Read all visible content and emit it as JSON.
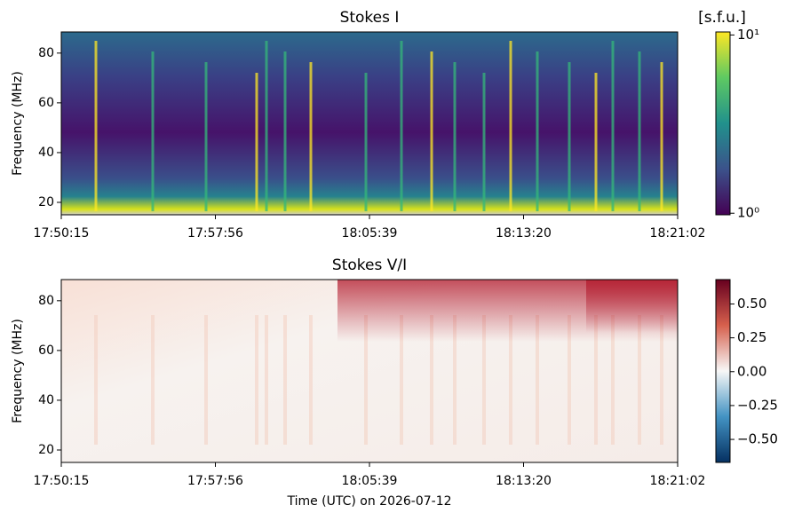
{
  "chart_data": [
    {
      "type": "heatmap",
      "title": "Stokes I",
      "ylabel": "Frequency (MHz)",
      "categories": [
        "17:50:15",
        "17:57:56",
        "18:05:39",
        "18:13:20",
        "18:21:02"
      ],
      "ylim": [
        15,
        88.5
      ],
      "yticks": [
        20,
        40,
        60,
        80
      ],
      "colorbar_label": "[s.f.u.]",
      "colorbar_log": true,
      "colorbar_lim": [
        0.98,
        10.4
      ],
      "colorbar_ticks": [
        {
          "value": 1,
          "label": "10⁰"
        },
        {
          "value": 10,
          "label": "10¹"
        }
      ],
      "colormap": [
        "#440154",
        "#3b528b",
        "#21918c",
        "#5ec962",
        "#fde725"
      ]
    },
    {
      "type": "heatmap",
      "title": "Stokes V/I",
      "ylabel": "Frequency (MHz)",
      "xlabel": "Time (UTC) on 2026-07-12",
      "categories": [
        "17:50:15",
        "17:57:56",
        "18:05:39",
        "18:13:20",
        "18:21:02"
      ],
      "ylim": [
        15,
        88.5
      ],
      "yticks": [
        20,
        40,
        60,
        80
      ],
      "colorbar_log": false,
      "colorbar_lim": [
        -0.67,
        0.68
      ],
      "colorbar_ticks": [
        {
          "value": 0.5,
          "label": "0.50"
        },
        {
          "value": 0.25,
          "label": "0.25"
        },
        {
          "value": 0,
          "label": "0.00"
        },
        {
          "value": -0.25,
          "label": "−0.25"
        },
        {
          "value": -0.5,
          "label": "−0.50"
        }
      ],
      "colormap": [
        "#053061",
        "#4393c3",
        "#f7f7f7",
        "#d6604d",
        "#67001f"
      ]
    }
  ]
}
